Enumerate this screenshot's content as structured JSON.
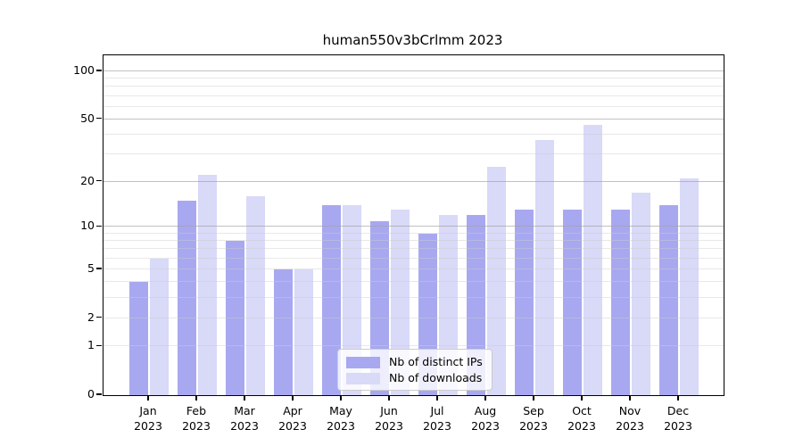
{
  "chart_data": {
    "type": "bar",
    "title": "human550v3bCrlmm 2023",
    "categories": [
      "Jan 2023",
      "Feb 2023",
      "Mar 2023",
      "Apr 2023",
      "May 2023",
      "Jun 2023",
      "Jul 2023",
      "Aug 2023",
      "Sep 2023",
      "Oct 2023",
      "Nov 2023",
      "Dec 2023"
    ],
    "series": [
      {
        "name": "Nb of distinct IPs",
        "color": "#a8a8f0",
        "values": [
          4,
          15,
          8,
          5,
          14,
          11,
          9,
          12,
          13,
          13,
          13,
          14
        ]
      },
      {
        "name": "Nb of downloads",
        "color": "#d9d9f8",
        "values": [
          6,
          22,
          16,
          5,
          14,
          13,
          12,
          25,
          37,
          46,
          17,
          21
        ]
      }
    ],
    "xlabel": "",
    "ylabel": "",
    "yscale": "log1p",
    "ylim": [
      0,
      125
    ],
    "yticks": [
      0,
      1,
      2,
      5,
      10,
      20,
      50,
      100
    ],
    "grid": {
      "on": true,
      "major": [
        10,
        20,
        50,
        100
      ],
      "minor": [
        1,
        2,
        3,
        4,
        5,
        6,
        7,
        8,
        9,
        30,
        40,
        60,
        70,
        80,
        90
      ]
    },
    "legend_position": "lower center"
  }
}
